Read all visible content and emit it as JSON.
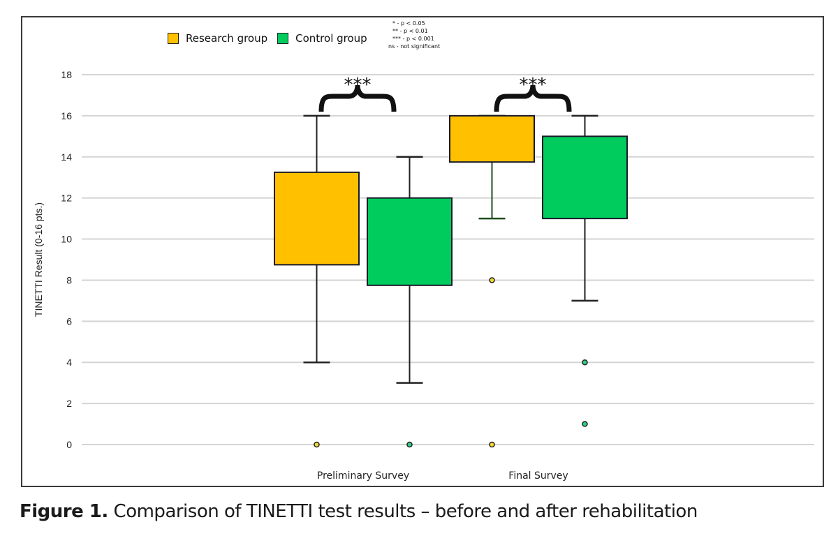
{
  "caption": {
    "label": "Figure 1.",
    "text": " Comparison of TINETTI test results – before and after rehabilitation"
  },
  "legend": {
    "items": [
      {
        "label": "Research group",
        "color": "#FFC000"
      },
      {
        "label": "Control group",
        "color": "#00CC5E"
      }
    ],
    "significance_notes": [
      "* - p < 0.05",
      "** - p < 0.01",
      "*** - p < 0.001",
      "ns - not significant"
    ]
  },
  "chart_data": {
    "type": "boxplot",
    "title": "",
    "xlabel": "",
    "ylabel": "TINETTI Result (0-16 pts.)",
    "ylim": [
      0,
      18
    ],
    "yticks": [
      0,
      2,
      4,
      6,
      8,
      10,
      12,
      14,
      16,
      18
    ],
    "grid": true,
    "legend_position": "top-left",
    "categories": [
      "Preliminary Survey",
      "Final Survey"
    ],
    "series": [
      {
        "name": "Research group",
        "color": "#FFC000",
        "boxes": [
          {
            "category": "Preliminary Survey",
            "whisker_low": 4,
            "q1": 8.75,
            "q3": 13.25,
            "whisker_high": 16,
            "outliers": [
              0
            ]
          },
          {
            "category": "Final Survey",
            "whisker_low": 11,
            "q1": 13.75,
            "q3": 16,
            "whisker_high": 16,
            "outliers": [
              8,
              0
            ]
          }
        ]
      },
      {
        "name": "Control group",
        "color": "#00CC5E",
        "boxes": [
          {
            "category": "Preliminary Survey",
            "whisker_low": 3,
            "q1": 7.75,
            "q3": 12,
            "whisker_high": 14,
            "outliers": [
              0
            ]
          },
          {
            "category": "Final Survey",
            "whisker_low": 7,
            "q1": 11,
            "q3": 15,
            "whisker_high": 16,
            "outliers": [
              4,
              1
            ]
          }
        ]
      }
    ],
    "annotations": [
      {
        "category": "Preliminary Survey",
        "text": "***"
      },
      {
        "category": "Final Survey",
        "text": "***"
      }
    ]
  }
}
